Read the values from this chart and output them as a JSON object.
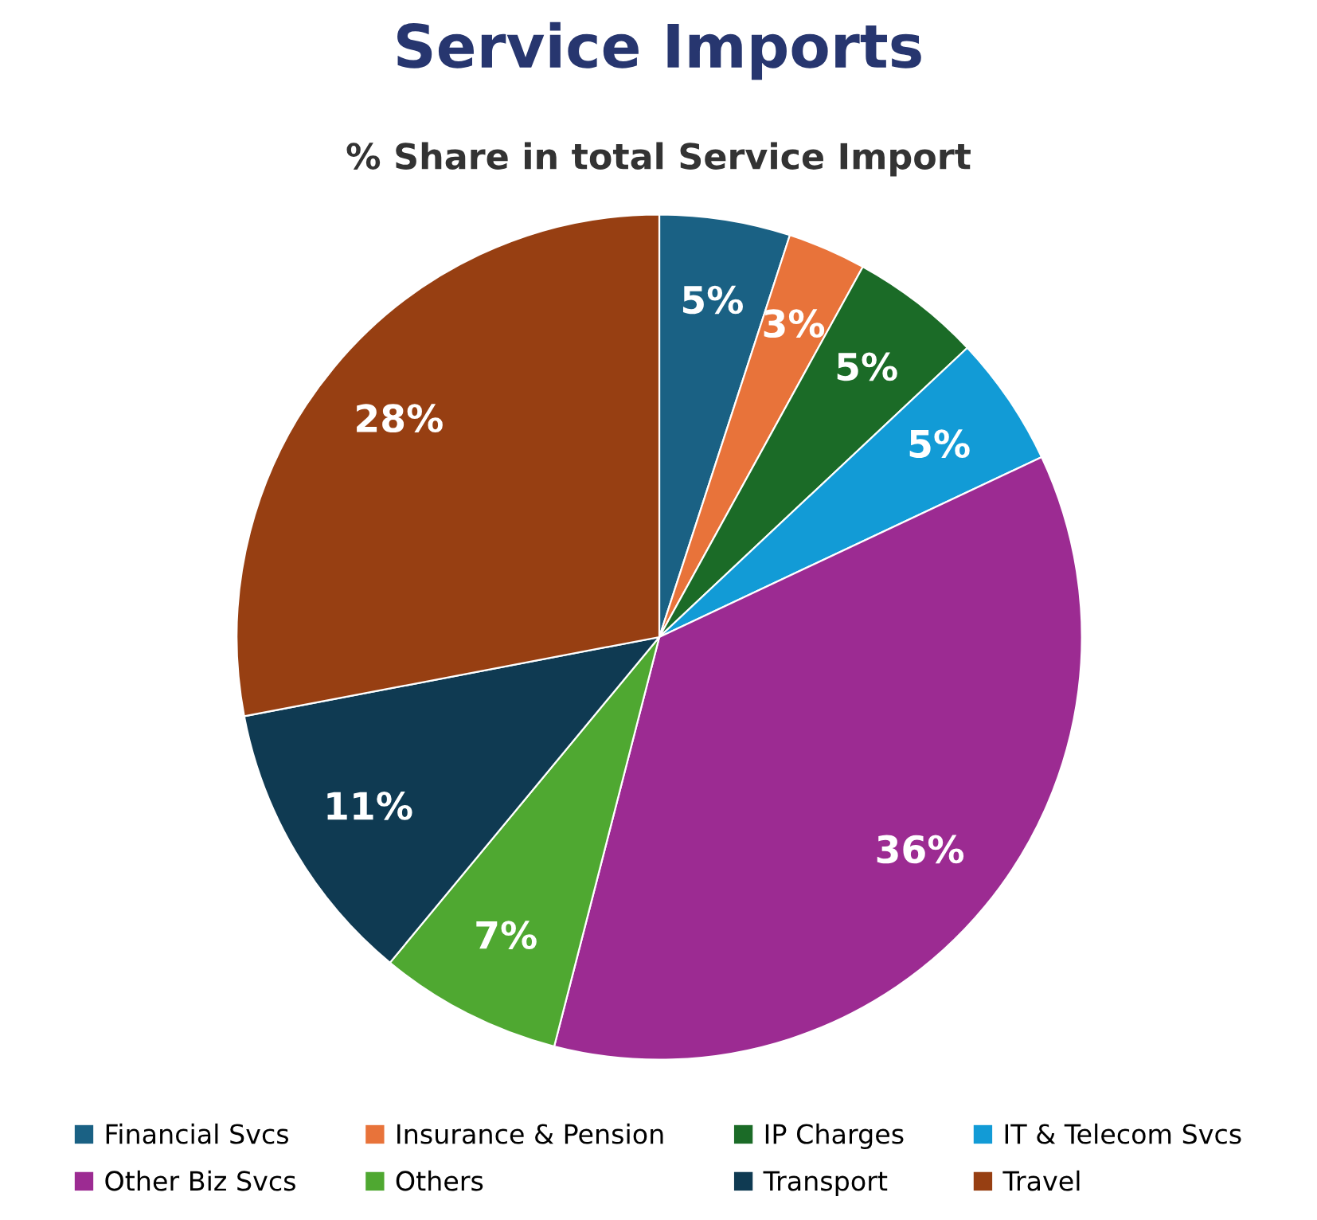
{
  "chart_data": {
    "type": "pie",
    "title": "Service Imports",
    "subtitle": "% Share in total Service Import",
    "categories": [
      "Financial Svcs",
      "Insurance & Pension",
      "IP Charges",
      "IT & Telecom Svcs",
      "Other Biz Svcs",
      "Others",
      "Transport",
      "Travel"
    ],
    "values": [
      5,
      3,
      5,
      5,
      36,
      7,
      11,
      28
    ],
    "value_labels": [
      "5%",
      "3%",
      "5%",
      "5%",
      "36%",
      "7%",
      "11%",
      "28%"
    ],
    "colors": [
      "#1a6184",
      "#e8733a",
      "#1b6b27",
      "#129bd6",
      "#9c2b92",
      "#4fa831",
      "#0f3a52",
      "#973f12"
    ],
    "legend": "bottom"
  }
}
